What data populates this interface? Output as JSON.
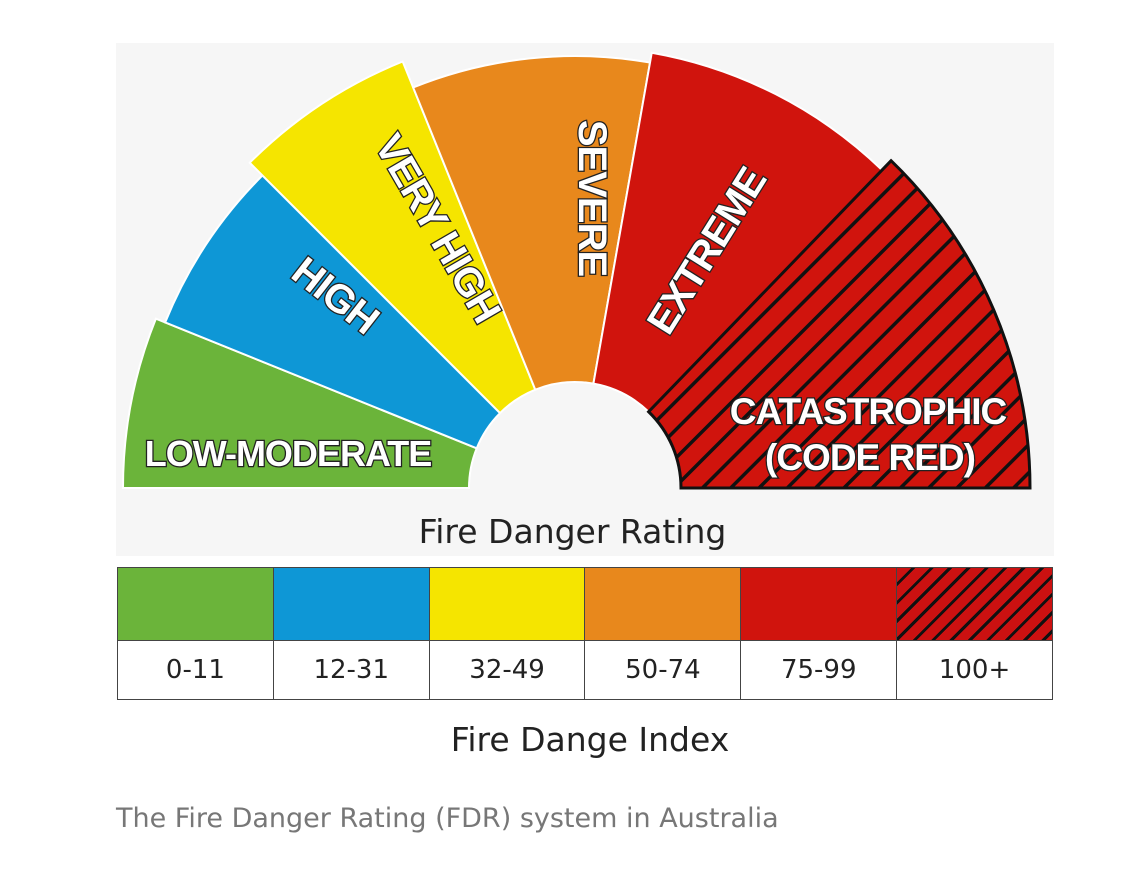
{
  "gauge": {
    "title": "Fire Danger Rating",
    "segments": [
      {
        "label": "LOW-MODERATE",
        "color": "#6bb43a",
        "hatched": false
      },
      {
        "label": "HIGH",
        "color": "#0e97d6",
        "hatched": false
      },
      {
        "label": "VERY HIGH",
        "color": "#f5e500",
        "hatched": false
      },
      {
        "label": "SEVERE",
        "color": "#e8881c",
        "hatched": false
      },
      {
        "label": "EXTREME",
        "color": "#d0140d",
        "hatched": false
      },
      {
        "label_line1": "CATASTROPHIC",
        "label_line2": "(CODE RED)",
        "color": "#d0140d",
        "hatched": true
      }
    ]
  },
  "index": {
    "title": "Fire Dange Index",
    "ranges": [
      {
        "value": "0-11",
        "color": "#6bb43a",
        "hatched": false
      },
      {
        "value": "12-31",
        "color": "#0e97d6",
        "hatched": false
      },
      {
        "value": "32-49",
        "color": "#f5e500",
        "hatched": false
      },
      {
        "value": "50-74",
        "color": "#e8881c",
        "hatched": false
      },
      {
        "value": "75-99",
        "color": "#d0140d",
        "hatched": false
      },
      {
        "value": "100+",
        "color": "#d0140d",
        "hatched": true
      }
    ]
  },
  "caption": "The Fire Danger Rating (FDR) system in Australia"
}
